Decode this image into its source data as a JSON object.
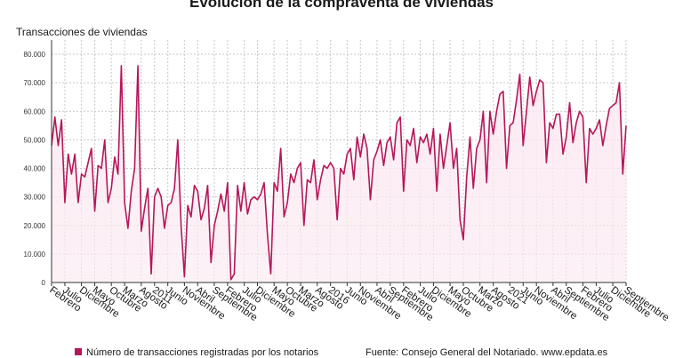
{
  "title": "Evolución de la compraventa de viviendas",
  "legend_label": "Número de transacciones registradas por los notarios",
  "source": "Fuente: Consejo General del Notariado. www.epdata.es",
  "colors": {
    "line": "#b5175a",
    "area": "#fbe9f1",
    "grid": "#c8c8c8",
    "axis": "#333333"
  },
  "chart_data": {
    "type": "area",
    "title": "Evolución de la compraventa de viviendas",
    "ylabel": "Transacciones de viviendas",
    "xlabel": "",
    "ylim": [
      0,
      85000
    ],
    "yticks": [
      0,
      10000,
      20000,
      30000,
      40000,
      50000,
      60000,
      70000,
      80000
    ],
    "ytick_labels": [
      "0",
      "10.000",
      "20.000",
      "30.000",
      "40.000",
      "50.000",
      "60.000",
      "70.000",
      "80.000"
    ],
    "xtick_labels": [
      "Febrero",
      "Julio",
      "Diciembre",
      "Mayo",
      "Octubre",
      "Marzo",
      "Agosto",
      "2011",
      "Junio",
      "Noviembre",
      "Abril",
      "Septiembre",
      "Febrero",
      "Julio",
      "Diciembre",
      "Mayo",
      "Octubre",
      "Marzo",
      "Agosto",
      "2016",
      "Junio",
      "Noviembre",
      "Abril",
      "Septiembre",
      "Febrero",
      "Julio",
      "Diciembre",
      "Mayo",
      "Octubre",
      "Marzo",
      "Agosto",
      "2021",
      "Junio",
      "Noviembre",
      "Abril",
      "Septiembre",
      "Febrero",
      "Julio",
      "Diciembre",
      "Septiembre"
    ],
    "series": [
      {
        "name": "Número de transacciones registradas por los notarios",
        "values": [
          48000,
          58000,
          48000,
          57000,
          28000,
          45000,
          38000,
          45000,
          28000,
          38000,
          37000,
          42000,
          47000,
          25000,
          41000,
          40000,
          50000,
          28000,
          33000,
          44000,
          38000,
          76000,
          28000,
          19000,
          32000,
          40000,
          76000,
          18000,
          26000,
          33000,
          3000,
          30000,
          33000,
          30000,
          19000,
          27000,
          28000,
          33000,
          50000,
          20000,
          2000,
          27000,
          23000,
          34000,
          32000,
          22000,
          26000,
          34000,
          7000,
          20000,
          25000,
          31000,
          25000,
          35000,
          1000,
          3000,
          34000,
          25000,
          35000,
          24000,
          29000,
          30000,
          29000,
          31000,
          35000,
          17000,
          3000,
          35000,
          32000,
          47000,
          23000,
          28000,
          38000,
          35000,
          40000,
          42000,
          20000,
          36000,
          35000,
          43000,
          29000,
          36000,
          41000,
          40000,
          42000,
          40000,
          22000,
          40000,
          38000,
          45000,
          47000,
          36000,
          51000,
          44000,
          52000,
          47000,
          29000,
          43000,
          46000,
          50000,
          41000,
          49000,
          51000,
          43000,
          56000,
          58000,
          32000,
          50000,
          48000,
          54000,
          42000,
          51000,
          49000,
          52000,
          45000,
          54000,
          32000,
          52000,
          40000,
          48000,
          56000,
          40000,
          47000,
          22000,
          15000,
          37000,
          51000,
          33000,
          47000,
          50000,
          60000,
          35000,
          60000,
          52000,
          60000,
          66000,
          67000,
          40000,
          55000,
          56000,
          64000,
          73000,
          48000,
          60000,
          72000,
          62000,
          67000,
          71000,
          70000,
          42000,
          56000,
          54000,
          59000,
          59000,
          45000,
          51000,
          63000,
          49000,
          56000,
          60000,
          58000,
          35000,
          54000,
          52000,
          54000,
          57000,
          48000,
          55000,
          61000,
          62000,
          63000,
          70000,
          38000,
          55000
        ]
      }
    ]
  }
}
